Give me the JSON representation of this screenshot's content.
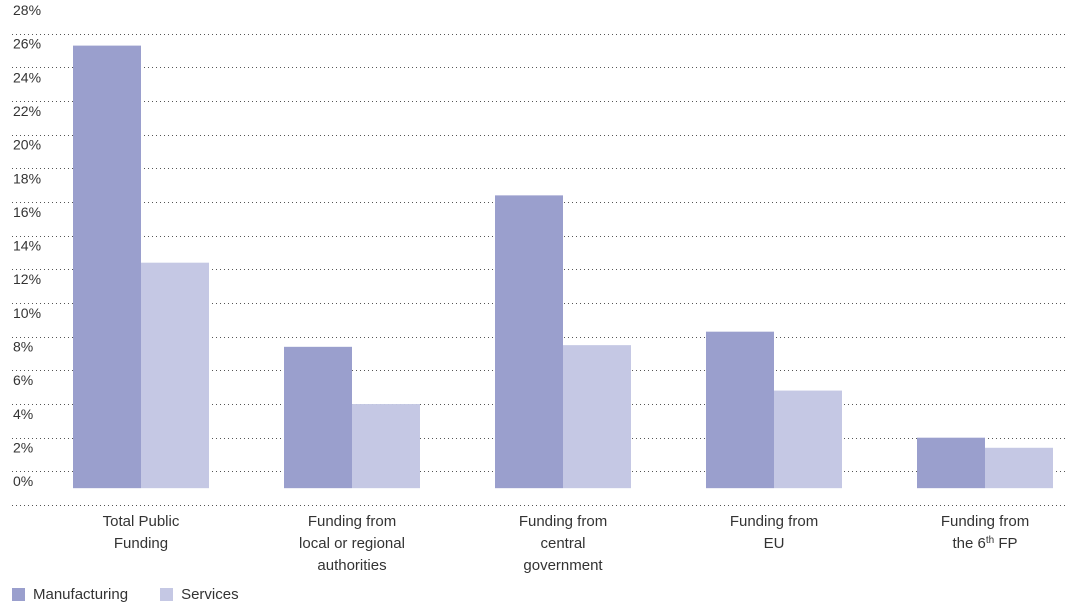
{
  "chart_data": {
    "type": "bar",
    "categories": [
      [
        "Total Public",
        "Funding"
      ],
      [
        "Funding from",
        "local or regional",
        "authorities"
      ],
      [
        "Funding from",
        "central",
        "government"
      ],
      [
        "Funding from",
        "EU"
      ],
      [
        "Funding from",
        "the 6th FP"
      ]
    ],
    "series": [
      {
        "name": "Manufacturing",
        "color": "#9a9fcd",
        "values": [
          26.3,
          8.4,
          17.4,
          9.3,
          3.0
        ]
      },
      {
        "name": "Services",
        "color": "#c5c8e4",
        "values": [
          13.4,
          5.0,
          8.5,
          5.8,
          2.4
        ]
      }
    ],
    "yticks": [
      "0%",
      "2%",
      "4%",
      "6%",
      "8%",
      "10%",
      "12%",
      "14%",
      "16%",
      "18%",
      "20%",
      "22%",
      "24%",
      "26%",
      "28%"
    ],
    "ylim": [
      -1,
      28
    ],
    "grid": true,
    "legend_position": "bottom-left"
  }
}
